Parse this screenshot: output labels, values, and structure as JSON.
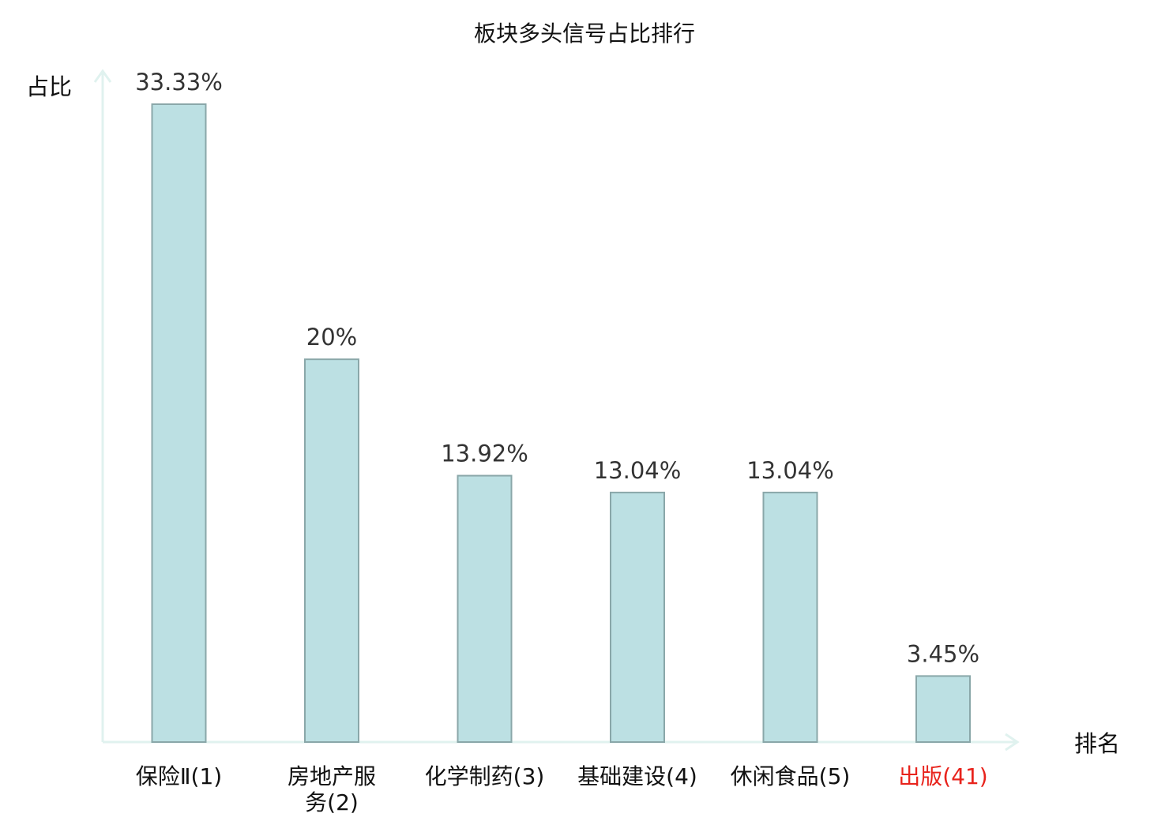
{
  "chart_data": {
    "type": "bar",
    "title": "板块多头信号占比排行",
    "ylabel": "占比",
    "xlabel": "排名",
    "ylim": [
      0,
      35
    ],
    "grid": false,
    "legend": "none",
    "categories": [
      {
        "lines": [
          "保险Ⅱ(1)"
        ],
        "highlight": false
      },
      {
        "lines": [
          "房地产服",
          "务(2)"
        ],
        "highlight": false
      },
      {
        "lines": [
          "化学制药(3)"
        ],
        "highlight": false
      },
      {
        "lines": [
          "基础建设(4)"
        ],
        "highlight": false
      },
      {
        "lines": [
          "休闲食品(5)"
        ],
        "highlight": false
      },
      {
        "lines": [
          "出版(41)"
        ],
        "highlight": true
      }
    ],
    "values": [
      33.33,
      20,
      13.92,
      13.04,
      13.04,
      3.45
    ],
    "value_labels": [
      "33.33%",
      "20%",
      "13.92%",
      "13.04%",
      "13.04%",
      "3.45%"
    ],
    "colors": {
      "bar_fill": "#bce0e3",
      "bar_stroke": "#8aa7a9",
      "axis": "#e0f2ef",
      "label": "#111111",
      "highlight_label": "#e8231c",
      "value_label": "#333333"
    }
  }
}
